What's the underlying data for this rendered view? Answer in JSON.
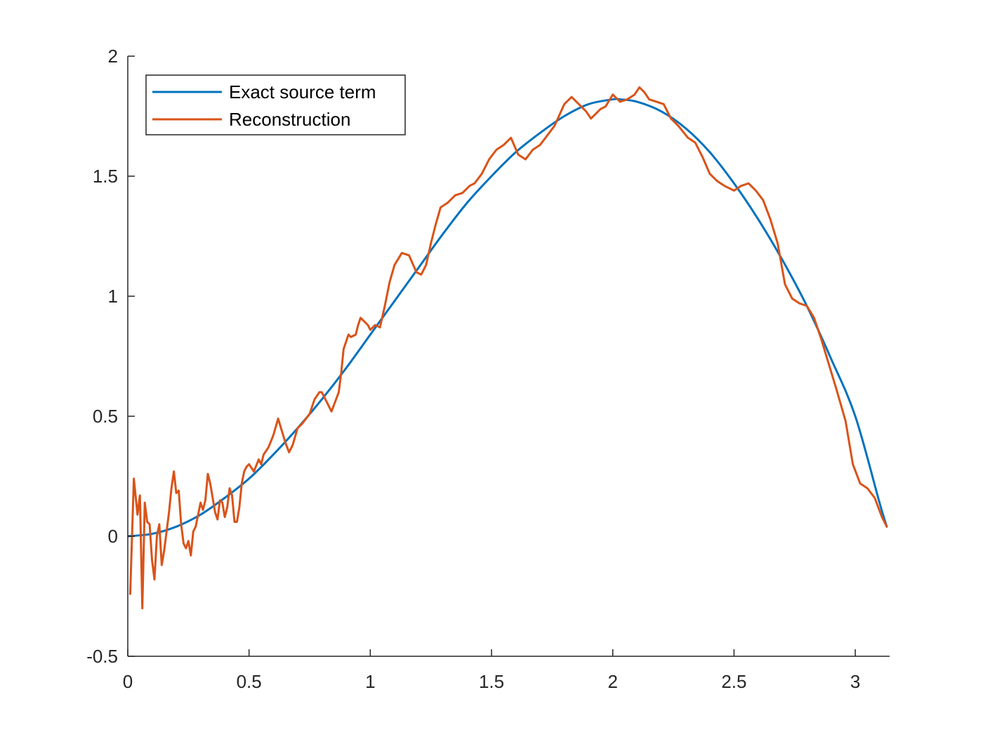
{
  "chart_data": {
    "type": "line",
    "title": "",
    "xlabel": "",
    "ylabel": "",
    "xlim": [
      0,
      3.1416
    ],
    "ylim": [
      -0.5,
      2
    ],
    "xticks": [
      0,
      0.5,
      1,
      1.5,
      2,
      2.5,
      3
    ],
    "xtick_labels": [
      "0",
      "0.5",
      "1",
      "1.5",
      "2",
      "2.5",
      "3"
    ],
    "yticks": [
      -0.5,
      0,
      0.5,
      1,
      1.5,
      2
    ],
    "ytick_labels": [
      "-0.5",
      "0",
      "0.5",
      "1",
      "1.5",
      "2"
    ],
    "grid": false,
    "legend_position": "top-left",
    "series": [
      {
        "name": "Exact source term",
        "color": "#0072BD",
        "style": "smooth",
        "x": [
          0,
          0.1,
          0.2,
          0.3,
          0.4,
          0.5,
          0.6,
          0.7,
          0.8,
          0.9,
          1.0,
          1.1,
          1.2,
          1.3,
          1.4,
          1.5,
          1.6,
          1.7,
          1.8,
          1.9,
          2.0,
          2.03,
          2.1,
          2.2,
          2.3,
          2.4,
          2.5,
          2.6,
          2.7,
          2.8,
          2.9,
          3.0,
          3.1,
          3.13
        ],
        "y": [
          0.0,
          0.01,
          0.04,
          0.09,
          0.16,
          0.24,
          0.34,
          0.45,
          0.57,
          0.7,
          0.84,
          0.98,
          1.12,
          1.26,
          1.39,
          1.5,
          1.6,
          1.68,
          1.75,
          1.8,
          1.82,
          1.82,
          1.81,
          1.77,
          1.7,
          1.6,
          1.47,
          1.32,
          1.15,
          0.96,
          0.74,
          0.5,
          0.14,
          0.04
        ]
      },
      {
        "name": "Reconstruction",
        "color": "#D95319",
        "style": "linear",
        "x": [
          0.01,
          0.025,
          0.04,
          0.05,
          0.06,
          0.07,
          0.08,
          0.09,
          0.1,
          0.11,
          0.12,
          0.13,
          0.14,
          0.15,
          0.16,
          0.17,
          0.18,
          0.19,
          0.2,
          0.21,
          0.22,
          0.23,
          0.24,
          0.25,
          0.26,
          0.27,
          0.28,
          0.29,
          0.3,
          0.31,
          0.32,
          0.33,
          0.34,
          0.35,
          0.36,
          0.37,
          0.38,
          0.39,
          0.4,
          0.41,
          0.42,
          0.43,
          0.44,
          0.45,
          0.46,
          0.47,
          0.48,
          0.49,
          0.5,
          0.52,
          0.54,
          0.55,
          0.56,
          0.58,
          0.6,
          0.62,
          0.635,
          0.65,
          0.665,
          0.68,
          0.7,
          0.72,
          0.735,
          0.75,
          0.77,
          0.79,
          0.8,
          0.82,
          0.84,
          0.855,
          0.87,
          0.88,
          0.89,
          0.9,
          0.91,
          0.92,
          0.94,
          0.95,
          0.96,
          0.98,
          0.99,
          1.0,
          1.02,
          1.04,
          1.06,
          1.08,
          1.1,
          1.13,
          1.16,
          1.19,
          1.21,
          1.23,
          1.25,
          1.27,
          1.29,
          1.32,
          1.35,
          1.38,
          1.41,
          1.43,
          1.46,
          1.49,
          1.52,
          1.55,
          1.58,
          1.61,
          1.64,
          1.67,
          1.7,
          1.73,
          1.76,
          1.8,
          1.83,
          1.85,
          1.87,
          1.89,
          1.91,
          1.93,
          1.95,
          1.97,
          2.0,
          2.03,
          2.06,
          2.09,
          2.11,
          2.13,
          2.15,
          2.18,
          2.21,
          2.24,
          2.27,
          2.31,
          2.34,
          2.37,
          2.4,
          2.43,
          2.46,
          2.5,
          2.53,
          2.56,
          2.59,
          2.62,
          2.65,
          2.68,
          2.71,
          2.74,
          2.77,
          2.8,
          2.83,
          2.86,
          2.89,
          2.92,
          2.96,
          2.99,
          3.02,
          3.05,
          3.08,
          3.11,
          3.13
        ],
        "y": [
          -0.24,
          0.24,
          0.09,
          0.17,
          -0.3,
          0.14,
          0.06,
          0.05,
          -0.1,
          -0.18,
          0.0,
          0.05,
          -0.12,
          -0.06,
          0.02,
          0.1,
          0.2,
          0.27,
          0.18,
          0.19,
          0.05,
          -0.03,
          -0.05,
          -0.02,
          -0.08,
          0.02,
          0.04,
          0.09,
          0.14,
          0.11,
          0.15,
          0.26,
          0.22,
          0.16,
          0.1,
          0.07,
          0.15,
          0.14,
          0.08,
          0.12,
          0.2,
          0.17,
          0.06,
          0.06,
          0.12,
          0.22,
          0.27,
          0.29,
          0.3,
          0.27,
          0.32,
          0.3,
          0.34,
          0.37,
          0.42,
          0.49,
          0.44,
          0.39,
          0.35,
          0.38,
          0.45,
          0.47,
          0.49,
          0.51,
          0.57,
          0.6,
          0.6,
          0.56,
          0.52,
          0.56,
          0.6,
          0.68,
          0.78,
          0.81,
          0.84,
          0.83,
          0.84,
          0.88,
          0.91,
          0.89,
          0.88,
          0.86,
          0.88,
          0.87,
          0.96,
          1.06,
          1.13,
          1.18,
          1.17,
          1.1,
          1.09,
          1.13,
          1.22,
          1.3,
          1.37,
          1.39,
          1.42,
          1.43,
          1.46,
          1.47,
          1.51,
          1.57,
          1.61,
          1.63,
          1.66,
          1.59,
          1.57,
          1.61,
          1.63,
          1.67,
          1.71,
          1.8,
          1.83,
          1.81,
          1.79,
          1.77,
          1.74,
          1.76,
          1.78,
          1.79,
          1.84,
          1.81,
          1.82,
          1.84,
          1.87,
          1.85,
          1.82,
          1.81,
          1.8,
          1.74,
          1.71,
          1.66,
          1.64,
          1.58,
          1.51,
          1.48,
          1.46,
          1.44,
          1.46,
          1.47,
          1.44,
          1.4,
          1.32,
          1.22,
          1.05,
          0.99,
          0.97,
          0.96,
          0.91,
          0.82,
          0.72,
          0.62,
          0.48,
          0.3,
          0.22,
          0.2,
          0.16,
          0.08,
          0.04
        ]
      }
    ]
  }
}
